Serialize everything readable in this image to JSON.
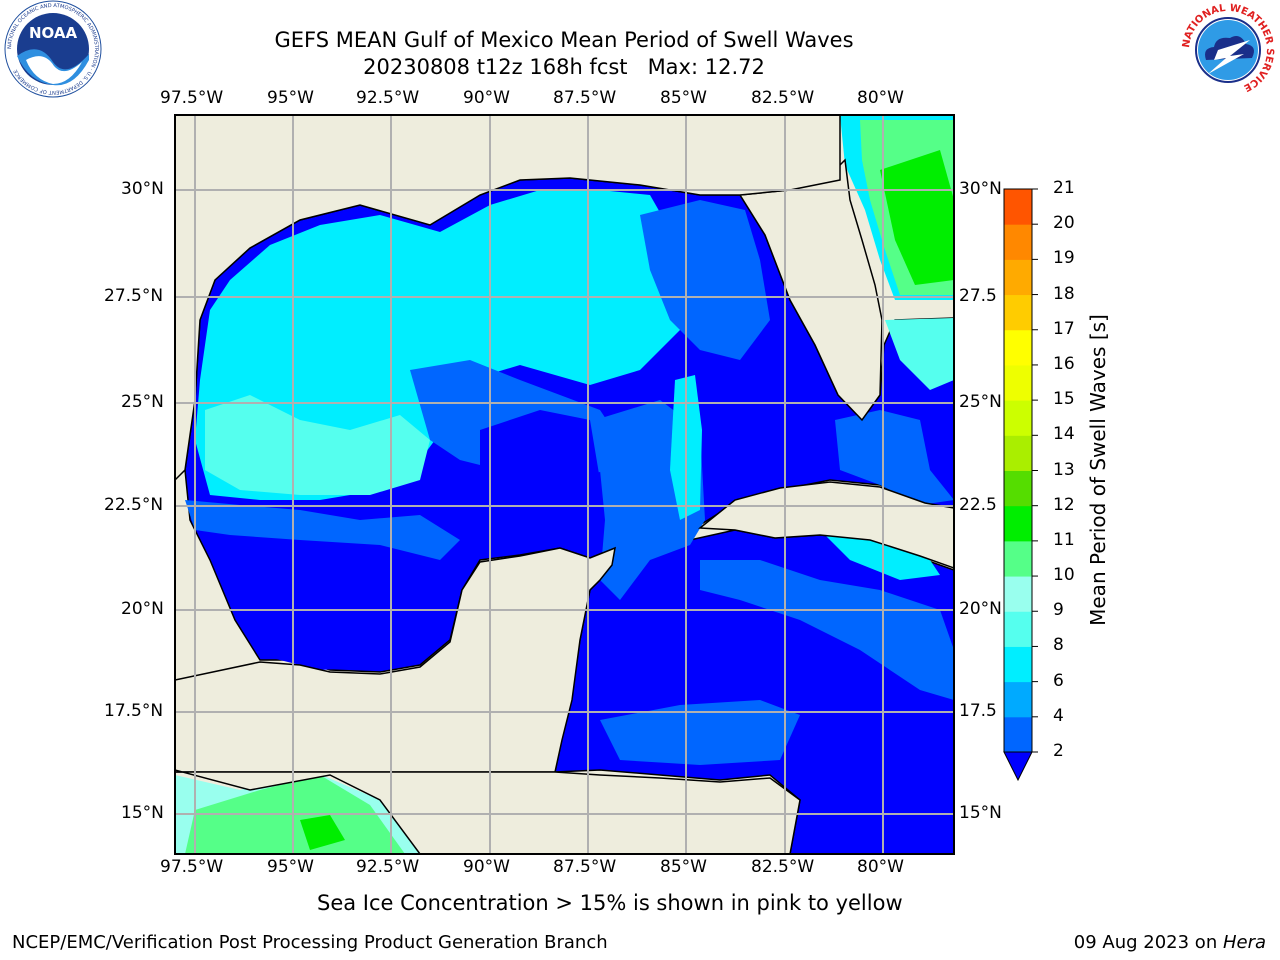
{
  "header": {
    "title_line1": "GEFS MEAN Gulf of Mexico Mean Period of Swell Waves",
    "title_line2": "20230808 t12z 168h fcst   Max: 12.72"
  },
  "logos": {
    "noaa_text": "NOAA",
    "noaa_ring": "NATIONAL OCEANIC AND ATMOSPHERIC ADMINISTRATION · U.S. DEPARTMENT OF COMMERCE",
    "nws_ring": "NATIONAL WEATHER SERVICE"
  },
  "map": {
    "lon_labels": [
      "97.5°W",
      "95°W",
      "92.5°W",
      "90°W",
      "87.5°W",
      "85°W",
      "82.5°W",
      "80°W"
    ],
    "lat_labels_left": [
      "30°N",
      "27.5°N",
      "25°N",
      "22.5°N",
      "20°N",
      "17.5°N",
      "15°N"
    ],
    "lat_labels_right": [
      "30°N",
      "27.5",
      "25°N",
      "22.5",
      "20°N",
      "17.5",
      "15°N"
    ],
    "land_color": "#eeeddd",
    "grid_color": "#b0b0b0"
  },
  "colorbar": {
    "ticks": [
      "2",
      "4",
      "6",
      "8",
      "9",
      "10",
      "11",
      "12",
      "13",
      "14",
      "15",
      "16",
      "17",
      "18",
      "19",
      "20",
      "21"
    ],
    "colors": [
      "#0066ff",
      "#00aaff",
      "#00eeff",
      "#55ffee",
      "#99ffee",
      "#55ff88",
      "#00ee00",
      "#55dd00",
      "#aaee00",
      "#ccff00",
      "#eeff00",
      "#ffff00",
      "#ffcc00",
      "#ffaa00",
      "#ff8800",
      "#ff5500",
      "#ff2200",
      "#ff0000"
    ],
    "under_color": "#0000ff",
    "label": "Mean Period of Swell Waves [s]"
  },
  "caption": "Sea Ice Concentration > 15% is shown in pink to yellow",
  "footer": {
    "left": "NCEP/EMC/Verification Post Processing Product Generation Branch",
    "date": "09 Aug 2023 on ",
    "host": "Hera"
  }
}
